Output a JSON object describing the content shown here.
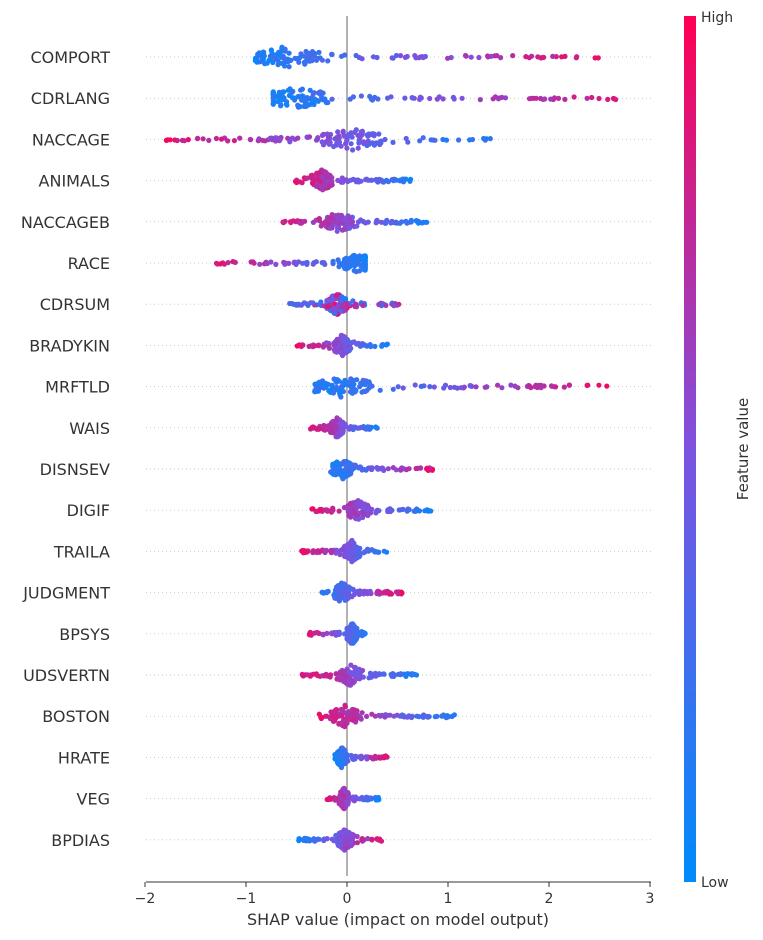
{
  "chart_data": {
    "type": "scatter",
    "subtype": "shap-beeswarm-summary",
    "xlabel": "SHAP value (impact on model output)",
    "xlim": [
      -2.0,
      3.0
    ],
    "xticks": [
      -2,
      -1,
      0,
      1,
      2,
      3
    ],
    "xtick_labels": [
      "−2",
      "−1",
      "0",
      "1",
      "2",
      "3"
    ],
    "colorbar": {
      "label": "Feature value",
      "high_label": "High",
      "low_label": "Low",
      "low_color": "#008bfb",
      "high_color": "#ff0052"
    },
    "features": [
      {
        "name": "COMPORT",
        "min": -0.93,
        "max": 2.52,
        "low_side": "left",
        "mode": -0.6
      },
      {
        "name": "CDRLANG",
        "min": -0.73,
        "max": 2.78,
        "low_side": "left",
        "mode": -0.5
      },
      {
        "name": "NACCAGE",
        "min": -1.83,
        "max": 1.48,
        "low_side": "right",
        "mode": 0.05
      },
      {
        "name": "ANIMALS",
        "min": -0.53,
        "max": 0.63,
        "low_side": "right",
        "mode": -0.25
      },
      {
        "name": "NACCAGEB",
        "min": -0.7,
        "max": 0.85,
        "low_side": "right",
        "mode": -0.08
      },
      {
        "name": "RACE",
        "min": -1.3,
        "max": 0.18,
        "low_side": "right",
        "mode": 0.1
      },
      {
        "name": "CDRSUM",
        "min": -0.57,
        "max": 0.55,
        "low_side": "mixed",
        "mode": -0.1
      },
      {
        "name": "BRADYKIN",
        "min": -0.5,
        "max": 0.4,
        "low_side": "right",
        "mode": -0.05
      },
      {
        "name": "MRFTLD",
        "min": -0.33,
        "max": 2.68,
        "low_side": "left",
        "mode": -0.05
      },
      {
        "name": "WAIS",
        "min": -0.38,
        "max": 0.31,
        "low_side": "right",
        "mode": -0.1
      },
      {
        "name": "DISNSEV",
        "min": -0.17,
        "max": 0.86,
        "low_side": "left",
        "mode": -0.05
      },
      {
        "name": "DIGIF",
        "min": -0.36,
        "max": 0.84,
        "low_side": "right",
        "mode": 0.1
      },
      {
        "name": "TRAILA",
        "min": -0.46,
        "max": 0.4,
        "low_side": "right",
        "mode": 0.05
      },
      {
        "name": "JUDGMENT",
        "min": -0.25,
        "max": 0.55,
        "low_side": "left",
        "mode": -0.05
      },
      {
        "name": "BPSYS",
        "min": -0.38,
        "max": 0.18,
        "low_side": "right",
        "mode": 0.05
      },
      {
        "name": "UDSVERTN",
        "min": -0.46,
        "max": 0.7,
        "low_side": "right",
        "mode": 0.03
      },
      {
        "name": "BOSTON",
        "min": -0.28,
        "max": 1.13,
        "low_side": "right",
        "mode": -0.02
      },
      {
        "name": "HRATE",
        "min": -0.12,
        "max": 0.42,
        "low_side": "left",
        "mode": -0.05
      },
      {
        "name": "VEG",
        "min": -0.2,
        "max": 0.32,
        "low_side": "right",
        "mode": -0.03
      },
      {
        "name": "BPDIAS",
        "min": -0.48,
        "max": 0.38,
        "low_side": "left",
        "mode": -0.02
      }
    ]
  }
}
